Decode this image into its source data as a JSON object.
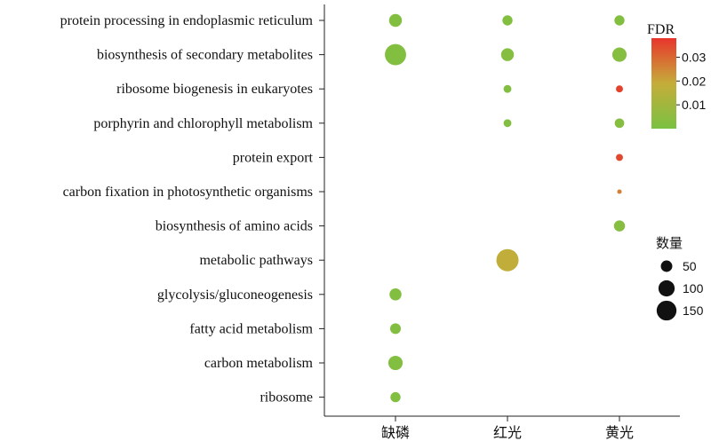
{
  "chart_data": {
    "type": "scatter",
    "subtype": "bubble",
    "categories_x": [
      "缺磷",
      "红光",
      "黄光"
    ],
    "categories_y": [
      "protein processing in endoplasmic reticulum",
      "biosynthesis of secondary metabolites",
      "ribosome biogenesis in eukaryotes",
      "porphyrin and chlorophyll metabolism",
      "protein export",
      "carbon fixation in photosynthetic organisms",
      "biosynthesis of amino acids",
      "metabolic pathways",
      "glycolysis/gluconeogenesis",
      "fatty acid metabolism",
      "carbon metabolism",
      "ribosome"
    ],
    "points": [
      {
        "x": "缺磷",
        "y": "protein processing in endoplasmic reticulum",
        "count": 40,
        "fdr": 0.002
      },
      {
        "x": "缺磷",
        "y": "biosynthesis of secondary metabolites",
        "count": 110,
        "fdr": 0.002
      },
      {
        "x": "缺磷",
        "y": "glycolysis/gluconeogenesis",
        "count": 35,
        "fdr": 0.002
      },
      {
        "x": "缺磷",
        "y": "fatty acid metabolism",
        "count": 28,
        "fdr": 0.002
      },
      {
        "x": "缺磷",
        "y": "carbon metabolism",
        "count": 50,
        "fdr": 0.002
      },
      {
        "x": "缺磷",
        "y": "ribosome",
        "count": 25,
        "fdr": 0.002
      },
      {
        "x": "红光",
        "y": "protein processing in endoplasmic reticulum",
        "count": 25,
        "fdr": 0.002
      },
      {
        "x": "红光",
        "y": "biosynthesis of secondary metabolites",
        "count": 40,
        "fdr": 0.003
      },
      {
        "x": "红光",
        "y": "ribosome biogenesis in eukaryotes",
        "count": 15,
        "fdr": 0.002
      },
      {
        "x": "红光",
        "y": "porphyrin and chlorophyll metabolism",
        "count": 15,
        "fdr": 0.002
      },
      {
        "x": "红光",
        "y": "metabolic pathways",
        "count": 120,
        "fdr": 0.018
      },
      {
        "x": "黄光",
        "y": "protein processing in endoplasmic reticulum",
        "count": 25,
        "fdr": 0.002
      },
      {
        "x": "黄光",
        "y": "biosynthesis of secondary metabolites",
        "count": 50,
        "fdr": 0.003
      },
      {
        "x": "黄光",
        "y": "ribosome biogenesis in eukaryotes",
        "count": 12,
        "fdr": 0.036
      },
      {
        "x": "黄光",
        "y": "porphyrin and chlorophyll metabolism",
        "count": 22,
        "fdr": 0.003
      },
      {
        "x": "黄光",
        "y": "protein export",
        "count": 12,
        "fdr": 0.035
      },
      {
        "x": "黄光",
        "y": "carbon fixation in photosynthetic organisms",
        "count": 5,
        "fdr": 0.026
      },
      {
        "x": "黄光",
        "y": "biosynthesis of amino acids",
        "count": 30,
        "fdr": 0.003
      }
    ],
    "color_legend": {
      "title": "FDR",
      "min": 0.0,
      "max": 0.038,
      "ticks": [
        0.03,
        0.02,
        0.01
      ],
      "tick_labels": [
        "0.03",
        "0.02",
        "0.01"
      ],
      "colors": [
        "#7ac142",
        "#c5ad3a",
        "#e8352c"
      ]
    },
    "size_legend": {
      "title": "数量",
      "values": [
        50,
        100,
        150
      ],
      "labels": [
        "50",
        "100",
        "150"
      ]
    },
    "legend_placement": "right",
    "grid": false
  }
}
